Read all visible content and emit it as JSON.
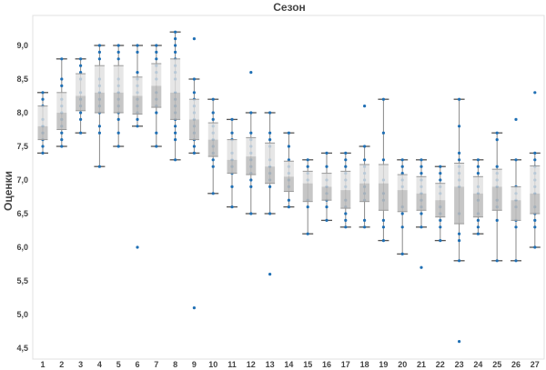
{
  "chart_data": {
    "type": "box",
    "title": "Сезон",
    "xlabel": "",
    "ylabel": "Оценки",
    "ylim": [
      4.4,
      9.45
    ],
    "yticks": [
      "4,5",
      "5,0",
      "5,5",
      "6,0",
      "6,5",
      "7,0",
      "7,5",
      "8,0",
      "8,5",
      "9,0"
    ],
    "ytick_values": [
      4.5,
      5.0,
      5.5,
      6.0,
      6.5,
      7.0,
      7.5,
      8.0,
      8.5,
      9.0
    ],
    "categories": [
      "1",
      "2",
      "3",
      "4",
      "5",
      "6",
      "7",
      "8",
      "9",
      "10",
      "11",
      "12",
      "13",
      "14",
      "15",
      "16",
      "17",
      "18",
      "19",
      "20",
      "21",
      "22",
      "23",
      "24",
      "25",
      "26",
      "27"
    ],
    "boxes": [
      {
        "low": 7.4,
        "q1": 7.6,
        "median": 7.8,
        "q3": 8.1,
        "high": 8.3,
        "outliers": [],
        "points": [
          7.4,
          7.5,
          7.6,
          7.7,
          7.8,
          7.9,
          8.1,
          8.2,
          8.3
        ]
      },
      {
        "low": 7.5,
        "q1": 7.75,
        "median": 8.0,
        "q3": 8.3,
        "high": 8.8,
        "outliers": [],
        "points": [
          7.5,
          7.6,
          7.7,
          7.8,
          7.9,
          8.0,
          8.1,
          8.2,
          8.4,
          8.5,
          8.8
        ]
      },
      {
        "low": 7.7,
        "q1": 8.03,
        "median": 8.25,
        "q3": 8.58,
        "high": 8.8,
        "outliers": [],
        "points": [
          7.7,
          7.9,
          8.0,
          8.1,
          8.2,
          8.3,
          8.5,
          8.6,
          8.7,
          8.8
        ]
      },
      {
        "low": 7.2,
        "q1": 8.0,
        "median": 8.3,
        "q3": 8.7,
        "high": 9.0,
        "outliers": [],
        "points": [
          7.2,
          7.7,
          7.8,
          8.0,
          8.1,
          8.2,
          8.3,
          8.4,
          8.5,
          8.8,
          8.9,
          9.0
        ]
      },
      {
        "low": 7.5,
        "q1": 8.0,
        "median": 8.3,
        "q3": 8.7,
        "high": 9.0,
        "outliers": [],
        "points": [
          7.5,
          7.7,
          7.9,
          8.0,
          8.1,
          8.2,
          8.3,
          8.4,
          8.5,
          8.8,
          8.9,
          9.0
        ]
      },
      {
        "low": 7.8,
        "q1": 7.98,
        "median": 8.25,
        "q3": 8.53,
        "high": 9.0,
        "outliers": [
          6.0
        ],
        "points": [
          7.8,
          7.9,
          8.0,
          8.1,
          8.2,
          8.3,
          8.4,
          8.5,
          8.6,
          8.9,
          9.0
        ]
      },
      {
        "low": 7.5,
        "q1": 8.08,
        "median": 8.4,
        "q3": 8.73,
        "high": 9.0,
        "outliers": [],
        "points": [
          7.5,
          7.7,
          8.0,
          8.1,
          8.2,
          8.3,
          8.5,
          8.6,
          8.7,
          8.8,
          8.9,
          9.0
        ]
      },
      {
        "low": 7.3,
        "q1": 7.9,
        "median": 8.3,
        "q3": 8.8,
        "high": 9.2,
        "outliers": [],
        "points": [
          7.3,
          7.6,
          7.7,
          7.8,
          7.9,
          8.0,
          8.1,
          8.2,
          8.3,
          8.5,
          8.6,
          8.7,
          8.8,
          8.9,
          9.0,
          9.1,
          9.2
        ]
      },
      {
        "low": 7.4,
        "q1": 7.6,
        "median": 7.9,
        "q3": 8.2,
        "high": 8.5,
        "outliers": [
          9.1,
          5.1
        ],
        "points": [
          7.4,
          7.5,
          7.6,
          7.7,
          7.8,
          7.9,
          8.0,
          8.1,
          8.2,
          8.3,
          8.5
        ]
      },
      {
        "low": 6.8,
        "q1": 7.35,
        "median": 7.6,
        "q3": 7.85,
        "high": 8.2,
        "outliers": [],
        "points": [
          6.8,
          7.2,
          7.3,
          7.4,
          7.5,
          7.6,
          7.7,
          7.8,
          7.9,
          8.0,
          8.2
        ]
      },
      {
        "low": 6.6,
        "q1": 7.1,
        "median": 7.3,
        "q3": 7.6,
        "high": 7.9,
        "outliers": [],
        "points": [
          6.6,
          6.9,
          7.1,
          7.2,
          7.3,
          7.4,
          7.6,
          7.7,
          7.9
        ]
      },
      {
        "low": 6.5,
        "q1": 7.08,
        "median": 7.35,
        "q3": 7.63,
        "high": 8.0,
        "outliers": [
          8.6
        ],
        "points": [
          6.5,
          6.9,
          7.0,
          7.1,
          7.2,
          7.3,
          7.4,
          7.5,
          7.6,
          7.7,
          8.0
        ]
      },
      {
        "low": 6.5,
        "q1": 6.95,
        "median": 7.2,
        "q3": 7.55,
        "high": 8.0,
        "outliers": [
          5.6
        ],
        "points": [
          6.5,
          6.9,
          7.0,
          7.1,
          7.2,
          7.3,
          7.5,
          7.6,
          7.7,
          8.0
        ]
      },
      {
        "low": 6.6,
        "q1": 6.83,
        "median": 7.05,
        "q3": 7.28,
        "high": 7.7,
        "outliers": [],
        "points": [
          6.6,
          6.7,
          6.9,
          7.0,
          7.1,
          7.2,
          7.3,
          7.5,
          7.7
        ]
      },
      {
        "low": 6.2,
        "q1": 6.68,
        "median": 6.95,
        "q3": 7.13,
        "high": 7.3,
        "outliers": [],
        "points": [
          6.2,
          6.6,
          6.7,
          7.0,
          7.1,
          7.2,
          7.3
        ]
      },
      {
        "low": 6.4,
        "q1": 6.7,
        "median": 6.9,
        "q3": 7.1,
        "high": 7.4,
        "outliers": [],
        "points": [
          6.4,
          6.6,
          6.7,
          6.8,
          6.9,
          7.0,
          7.2,
          7.4
        ]
      },
      {
        "low": 6.3,
        "q1": 6.58,
        "median": 6.85,
        "q3": 7.13,
        "high": 7.4,
        "outliers": [],
        "points": [
          6.3,
          6.4,
          6.5,
          6.6,
          6.7,
          6.9,
          7.0,
          7.1,
          7.2,
          7.3,
          7.4
        ]
      },
      {
        "low": 6.3,
        "q1": 6.68,
        "median": 6.95,
        "q3": 7.23,
        "high": 7.5,
        "outliers": [
          8.1
        ],
        "points": [
          6.3,
          6.4,
          6.7,
          6.8,
          6.9,
          7.0,
          7.1,
          7.2,
          7.3,
          7.5
        ]
      },
      {
        "low": 6.1,
        "q1": 6.55,
        "median": 6.95,
        "q3": 7.23,
        "high": 8.2,
        "outliers": [],
        "points": [
          6.1,
          6.3,
          6.4,
          6.7,
          6.8,
          7.0,
          7.3,
          7.7,
          8.2
        ]
      },
      {
        "low": 5.9,
        "q1": 6.53,
        "median": 6.85,
        "q3": 7.08,
        "high": 7.3,
        "outliers": [],
        "points": [
          5.9,
          6.3,
          6.5,
          6.6,
          6.9,
          7.0,
          7.1,
          7.2,
          7.3
        ]
      },
      {
        "low": 6.3,
        "q1": 6.55,
        "median": 6.8,
        "q3": 7.05,
        "high": 7.3,
        "outliers": [
          5.7
        ],
        "points": [
          6.3,
          6.5,
          6.6,
          6.7,
          6.8,
          6.9,
          7.0,
          7.1,
          7.2,
          7.3
        ]
      },
      {
        "low": 6.1,
        "q1": 6.45,
        "median": 6.7,
        "q3": 6.95,
        "high": 7.2,
        "outliers": [],
        "points": [
          6.1,
          6.3,
          6.4,
          6.5,
          6.6,
          6.8,
          6.9,
          7.0,
          7.1,
          7.2
        ]
      },
      {
        "low": 5.8,
        "q1": 6.35,
        "median": 6.9,
        "q3": 7.25,
        "high": 8.2,
        "outliers": [
          4.6
        ],
        "points": [
          5.8,
          6.1,
          6.2,
          6.5,
          6.9,
          7.0,
          7.1,
          7.2,
          7.3,
          7.4,
          7.8,
          8.2
        ]
      },
      {
        "low": 6.2,
        "q1": 6.45,
        "median": 6.8,
        "q3": 7.05,
        "high": 7.3,
        "outliers": [],
        "points": [
          6.2,
          6.3,
          6.4,
          6.5,
          6.7,
          6.8,
          6.9,
          7.1,
          7.2,
          7.3
        ]
      },
      {
        "low": 5.8,
        "q1": 6.55,
        "median": 6.9,
        "q3": 7.16,
        "high": 7.7,
        "outliers": [],
        "points": [
          5.8,
          6.4,
          6.6,
          6.7,
          6.9,
          7.0,
          7.1,
          7.2,
          7.6,
          7.7
        ]
      },
      {
        "low": 5.8,
        "q1": 6.4,
        "median": 6.7,
        "q3": 6.9,
        "high": 7.3,
        "outliers": [
          7.9
        ],
        "points": [
          5.8,
          6.3,
          6.4,
          6.6,
          6.7,
          6.8,
          6.9,
          7.3
        ]
      },
      {
        "low": 6.0,
        "q1": 6.5,
        "median": 6.8,
        "q3": 7.21,
        "high": 7.4,
        "outliers": [
          8.3
        ],
        "points": [
          6.0,
          6.3,
          6.4,
          6.5,
          6.6,
          6.8,
          6.9,
          7.0,
          7.1,
          7.2,
          7.3,
          7.4
        ]
      }
    ],
    "grid": false,
    "colors": {
      "upper_box": "#e0e0e0",
      "lower_box": "#bcbcbc",
      "point": "#1f6fb4",
      "whisker": "#555555",
      "axis": "#d9d9d9",
      "text": "#444444"
    }
  }
}
